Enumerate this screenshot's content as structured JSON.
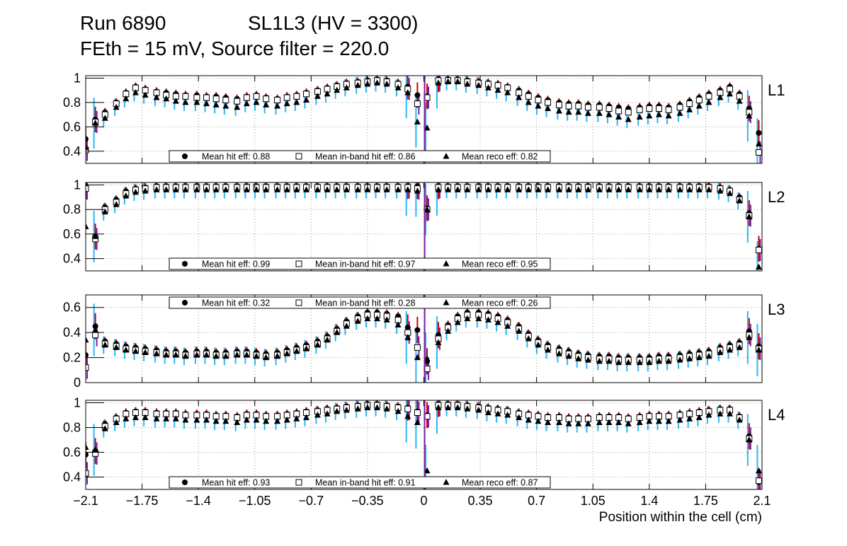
{
  "title": {
    "run": "Run 6890",
    "sl": "SL1L3 (HV = 3300)",
    "sub": "FEth = 15 mV, Source filter = 220.0"
  },
  "chart_data": {
    "type": "scatter",
    "xlabel": "Position within the cell (cm)",
    "xlim": [
      -2.1,
      2.1
    ],
    "xticks": [
      "−2.1",
      "−1.75",
      "−1.4",
      "−1.05",
      "−0.7",
      "−0.35",
      "0",
      "0.35",
      "0.7",
      "1.05",
      "1.4",
      "1.75",
      "2.1"
    ],
    "xtick_values": [
      -2.1,
      -1.75,
      -1.4,
      -1.05,
      -0.7,
      -0.35,
      0,
      0.35,
      0.7,
      1.05,
      1.4,
      1.75,
      2.1
    ],
    "colors": {
      "marker": "#000000",
      "err_hit": "#cc0000",
      "err_band": "#7a1fa2",
      "err_reco": "#29b6f6",
      "grid": "#999999"
    },
    "series_names": [
      "Mean hit  eff",
      "Mean in-band hit eff",
      "Mean reco eff"
    ],
    "x": [
      -2.1,
      -2.04,
      -1.98,
      -1.91,
      -1.85,
      -1.79,
      -1.73,
      -1.66,
      -1.6,
      -1.54,
      -1.48,
      -1.41,
      -1.35,
      -1.29,
      -1.23,
      -1.16,
      -1.1,
      -1.04,
      -0.98,
      -0.91,
      -0.85,
      -0.79,
      -0.73,
      -0.66,
      -0.6,
      -0.54,
      -0.48,
      -0.41,
      -0.35,
      -0.29,
      -0.23,
      -0.16,
      -0.1,
      -0.04,
      0.02,
      0.09,
      0.15,
      0.21,
      0.27,
      0.34,
      0.4,
      0.46,
      0.52,
      0.59,
      0.65,
      0.71,
      0.77,
      0.84,
      0.9,
      0.96,
      1.02,
      1.09,
      1.15,
      1.21,
      1.27,
      1.34,
      1.4,
      1.46,
      1.52,
      1.59,
      1.65,
      1.71,
      1.77,
      1.84,
      1.9,
      1.96,
      2.02,
      2.08
    ],
    "panels": [
      {
        "label": "L1",
        "ylim": [
          0.3,
          1.02
        ],
        "yticks": [
          0.4,
          0.6,
          0.8,
          1
        ],
        "ytick_labels": [
          "0.4",
          "0.6",
          "0.8",
          "1"
        ],
        "legend": {
          "hit": "Mean hit  eff: 0.88",
          "band": "Mean in-band hit eff: 0.86",
          "reco": "Mean reco eff: 0.82"
        },
        "hit": [
          0.5,
          0.66,
          0.72,
          0.8,
          0.88,
          0.93,
          0.91,
          0.89,
          0.88,
          0.87,
          0.86,
          0.86,
          0.85,
          0.85,
          0.84,
          0.83,
          0.85,
          0.86,
          0.84,
          0.83,
          0.85,
          0.86,
          0.88,
          0.9,
          0.92,
          0.94,
          0.96,
          0.97,
          0.98,
          0.99,
          0.98,
          0.96,
          0.93,
          0.86,
          0.85,
          0.99,
          0.99,
          0.99,
          0.98,
          0.97,
          0.96,
          0.95,
          0.93,
          0.9,
          0.87,
          0.84,
          0.82,
          0.8,
          0.79,
          0.79,
          0.78,
          0.78,
          0.77,
          0.76,
          0.75,
          0.76,
          0.77,
          0.77,
          0.76,
          0.78,
          0.81,
          0.84,
          0.87,
          0.9,
          0.93,
          0.87,
          0.75,
          0.55
        ],
        "band": [
          0.41,
          0.64,
          0.7,
          0.79,
          0.87,
          0.92,
          0.9,
          0.88,
          0.86,
          0.85,
          0.85,
          0.84,
          0.84,
          0.83,
          0.82,
          0.81,
          0.84,
          0.85,
          0.83,
          0.82,
          0.84,
          0.85,
          0.87,
          0.89,
          0.91,
          0.93,
          0.95,
          0.96,
          0.97,
          0.98,
          0.97,
          0.95,
          0.91,
          0.79,
          0.84,
          0.98,
          0.98,
          0.98,
          0.97,
          0.96,
          0.95,
          0.94,
          0.92,
          0.88,
          0.85,
          0.82,
          0.8,
          0.78,
          0.77,
          0.77,
          0.76,
          0.76,
          0.75,
          0.73,
          0.72,
          0.74,
          0.75,
          0.75,
          0.74,
          0.76,
          0.79,
          0.82,
          0.85,
          0.88,
          0.91,
          0.85,
          0.72,
          0.39
        ],
        "reco": [
          0.43,
          0.63,
          0.67,
          0.76,
          0.83,
          0.88,
          0.86,
          0.84,
          0.83,
          0.81,
          0.8,
          0.8,
          0.79,
          0.78,
          0.77,
          0.76,
          0.79,
          0.8,
          0.78,
          0.77,
          0.79,
          0.8,
          0.82,
          0.85,
          0.87,
          0.9,
          0.92,
          0.94,
          0.95,
          0.96,
          0.95,
          0.92,
          0.88,
          0.64,
          0.59,
          0.96,
          0.97,
          0.97,
          0.95,
          0.94,
          0.92,
          0.9,
          0.88,
          0.84,
          0.8,
          0.77,
          0.75,
          0.73,
          0.72,
          0.72,
          0.71,
          0.71,
          0.7,
          0.68,
          0.66,
          0.68,
          0.69,
          0.7,
          0.69,
          0.71,
          0.74,
          0.77,
          0.8,
          0.84,
          0.87,
          0.81,
          0.69,
          0.46
        ]
      },
      {
        "label": "L2",
        "ylim": [
          0.3,
          1.02
        ],
        "yticks": [
          0.4,
          0.6,
          0.8,
          1
        ],
        "ytick_labels": [
          "0.4",
          "0.6",
          "0.8",
          "1"
        ],
        "legend": {
          "hit": "Mean hit  eff: 0.99",
          "band": "Mean in-band hit eff: 0.97",
          "reco": "Mean reco eff: 0.95"
        },
        "hit": [
          0.99,
          0.58,
          0.82,
          0.88,
          0.95,
          0.97,
          0.98,
          0.99,
          0.99,
          0.99,
          0.99,
          0.99,
          0.99,
          0.99,
          0.99,
          0.99,
          0.99,
          0.99,
          0.99,
          0.99,
          0.99,
          0.99,
          0.99,
          0.99,
          0.99,
          0.99,
          0.99,
          0.99,
          0.99,
          0.99,
          0.99,
          0.99,
          0.99,
          0.99,
          0.81,
          0.99,
          0.99,
          0.99,
          0.99,
          0.99,
          0.99,
          0.99,
          0.99,
          0.99,
          0.99,
          0.99,
          0.99,
          0.99,
          0.99,
          0.99,
          0.99,
          0.99,
          0.99,
          0.99,
          0.99,
          0.99,
          0.99,
          0.99,
          0.99,
          0.99,
          0.99,
          0.99,
          0.99,
          0.98,
          0.96,
          0.9,
          0.77,
          0.48
        ],
        "band": [
          0.97,
          0.56,
          0.8,
          0.86,
          0.93,
          0.96,
          0.97,
          0.98,
          0.98,
          0.98,
          0.98,
          0.98,
          0.98,
          0.98,
          0.98,
          0.98,
          0.98,
          0.98,
          0.98,
          0.98,
          0.98,
          0.98,
          0.98,
          0.98,
          0.98,
          0.98,
          0.98,
          0.98,
          0.98,
          0.98,
          0.98,
          0.98,
          0.98,
          0.97,
          0.8,
          0.98,
          0.98,
          0.98,
          0.98,
          0.98,
          0.98,
          0.98,
          0.98,
          0.98,
          0.98,
          0.98,
          0.98,
          0.98,
          0.98,
          0.98,
          0.98,
          0.98,
          0.98,
          0.98,
          0.98,
          0.98,
          0.98,
          0.98,
          0.98,
          0.98,
          0.98,
          0.98,
          0.98,
          0.97,
          0.95,
          0.88,
          0.75,
          0.47
        ],
        "reco": [
          0.66,
          0.58,
          0.78,
          0.84,
          0.91,
          0.94,
          0.95,
          0.96,
          0.96,
          0.96,
          0.96,
          0.96,
          0.96,
          0.96,
          0.96,
          0.96,
          0.96,
          0.96,
          0.96,
          0.96,
          0.96,
          0.96,
          0.96,
          0.96,
          0.96,
          0.96,
          0.96,
          0.96,
          0.96,
          0.96,
          0.96,
          0.96,
          0.96,
          0.95,
          0.8,
          0.96,
          0.96,
          0.96,
          0.96,
          0.96,
          0.96,
          0.96,
          0.96,
          0.96,
          0.96,
          0.96,
          0.96,
          0.96,
          0.96,
          0.96,
          0.96,
          0.96,
          0.96,
          0.96,
          0.96,
          0.96,
          0.96,
          0.96,
          0.96,
          0.96,
          0.96,
          0.96,
          0.96,
          0.95,
          0.93,
          0.87,
          0.74,
          0.33
        ]
      },
      {
        "label": "L3",
        "ylim": [
          0,
          0.7
        ],
        "yticks": [
          0,
          0.2,
          0.4,
          0.6
        ],
        "ytick_labels": [
          "0",
          "0.2",
          "0.4",
          "0.6"
        ],
        "legend": {
          "hit": "Mean hit  eff: 0.32",
          "band": "Mean in-band hit eff: 0.28",
          "reco": "Mean reco eff: 0.26"
        },
        "hit": [
          0.22,
          0.45,
          0.33,
          0.31,
          0.29,
          0.28,
          0.27,
          0.26,
          0.25,
          0.25,
          0.24,
          0.25,
          0.25,
          0.24,
          0.24,
          0.25,
          0.25,
          0.24,
          0.23,
          0.24,
          0.26,
          0.28,
          0.3,
          0.33,
          0.37,
          0.43,
          0.49,
          0.53,
          0.56,
          0.56,
          0.55,
          0.53,
          0.44,
          0.42,
          0.17,
          0.38,
          0.46,
          0.53,
          0.56,
          0.56,
          0.55,
          0.53,
          0.5,
          0.45,
          0.39,
          0.34,
          0.3,
          0.27,
          0.25,
          0.23,
          0.22,
          0.21,
          0.21,
          0.2,
          0.2,
          0.2,
          0.2,
          0.21,
          0.21,
          0.22,
          0.23,
          0.24,
          0.25,
          0.28,
          0.3,
          0.32,
          0.41,
          0.29
        ],
        "band": [
          0.12,
          0.38,
          0.31,
          0.29,
          0.27,
          0.26,
          0.25,
          0.24,
          0.23,
          0.23,
          0.22,
          0.23,
          0.23,
          0.22,
          0.22,
          0.23,
          0.23,
          0.22,
          0.21,
          0.22,
          0.24,
          0.26,
          0.28,
          0.31,
          0.35,
          0.41,
          0.47,
          0.51,
          0.54,
          0.54,
          0.53,
          0.5,
          0.4,
          0.28,
          0.11,
          0.35,
          0.44,
          0.51,
          0.54,
          0.54,
          0.53,
          0.51,
          0.48,
          0.43,
          0.37,
          0.32,
          0.28,
          0.25,
          0.23,
          0.21,
          0.2,
          0.19,
          0.19,
          0.18,
          0.18,
          0.18,
          0.18,
          0.19,
          0.19,
          0.2,
          0.21,
          0.22,
          0.23,
          0.26,
          0.28,
          0.3,
          0.38,
          0.27
        ],
        "reco": [
          0.34,
          0.42,
          0.3,
          0.28,
          0.26,
          0.25,
          0.24,
          0.23,
          0.22,
          0.22,
          0.21,
          0.22,
          0.22,
          0.21,
          0.21,
          0.22,
          0.22,
          0.21,
          0.2,
          0.21,
          0.23,
          0.25,
          0.27,
          0.3,
          0.34,
          0.4,
          0.45,
          0.49,
          0.51,
          0.51,
          0.5,
          0.46,
          0.36,
          0.2,
          0.19,
          0.32,
          0.41,
          0.48,
          0.51,
          0.51,
          0.5,
          0.48,
          0.45,
          0.41,
          0.35,
          0.3,
          0.26,
          0.23,
          0.21,
          0.19,
          0.18,
          0.17,
          0.17,
          0.16,
          0.16,
          0.16,
          0.16,
          0.17,
          0.17,
          0.18,
          0.19,
          0.2,
          0.21,
          0.24,
          0.26,
          0.28,
          0.36,
          0.26
        ]
      },
      {
        "label": "L4",
        "ylim": [
          0.3,
          1.02
        ],
        "yticks": [
          0.4,
          0.6,
          0.8,
          1
        ],
        "ytick_labels": [
          "0.4",
          "0.6",
          "0.8",
          "1"
        ],
        "legend": {
          "hit": "Mean hit  eff: 0.93",
          "band": "Mean in-band hit eff: 0.91",
          "reco": "Mean reco eff: 0.87"
        },
        "hit": [
          0.58,
          0.61,
          0.83,
          0.88,
          0.92,
          0.93,
          0.93,
          0.92,
          0.92,
          0.92,
          0.91,
          0.91,
          0.91,
          0.9,
          0.9,
          0.89,
          0.91,
          0.91,
          0.9,
          0.9,
          0.91,
          0.92,
          0.93,
          0.94,
          0.95,
          0.96,
          0.97,
          0.98,
          0.99,
          0.99,
          0.98,
          0.97,
          0.96,
          0.93,
          0.9,
          0.99,
          0.99,
          0.99,
          0.98,
          0.97,
          0.96,
          0.95,
          0.94,
          0.92,
          0.91,
          0.9,
          0.89,
          0.89,
          0.88,
          0.88,
          0.88,
          0.89,
          0.89,
          0.89,
          0.88,
          0.89,
          0.9,
          0.9,
          0.9,
          0.91,
          0.92,
          0.93,
          0.94,
          0.95,
          0.95,
          0.89,
          0.73,
          0.36
        ],
        "band": [
          0.43,
          0.59,
          0.81,
          0.87,
          0.91,
          0.92,
          0.92,
          0.91,
          0.91,
          0.91,
          0.9,
          0.9,
          0.9,
          0.89,
          0.89,
          0.88,
          0.9,
          0.9,
          0.89,
          0.89,
          0.9,
          0.91,
          0.92,
          0.93,
          0.94,
          0.95,
          0.96,
          0.97,
          0.98,
          0.98,
          0.97,
          0.96,
          0.95,
          0.92,
          0.89,
          0.98,
          0.98,
          0.98,
          0.97,
          0.96,
          0.95,
          0.94,
          0.93,
          0.91,
          0.9,
          0.89,
          0.88,
          0.88,
          0.87,
          0.87,
          0.87,
          0.88,
          0.88,
          0.88,
          0.87,
          0.88,
          0.89,
          0.89,
          0.89,
          0.9,
          0.91,
          0.92,
          0.93,
          0.94,
          0.94,
          0.88,
          0.71,
          0.37
        ],
        "reco": [
          0.64,
          0.62,
          0.79,
          0.84,
          0.87,
          0.88,
          0.88,
          0.87,
          0.87,
          0.87,
          0.86,
          0.86,
          0.86,
          0.85,
          0.85,
          0.84,
          0.86,
          0.86,
          0.85,
          0.85,
          0.86,
          0.87,
          0.88,
          0.9,
          0.91,
          0.93,
          0.94,
          0.95,
          0.96,
          0.96,
          0.95,
          0.93,
          0.89,
          0.84,
          0.45,
          0.96,
          0.96,
          0.96,
          0.95,
          0.94,
          0.92,
          0.91,
          0.9,
          0.88,
          0.86,
          0.85,
          0.84,
          0.84,
          0.83,
          0.83,
          0.83,
          0.84,
          0.84,
          0.84,
          0.83,
          0.84,
          0.85,
          0.85,
          0.85,
          0.86,
          0.87,
          0.88,
          0.9,
          0.91,
          0.91,
          0.86,
          0.7,
          0.45
        ]
      }
    ]
  }
}
